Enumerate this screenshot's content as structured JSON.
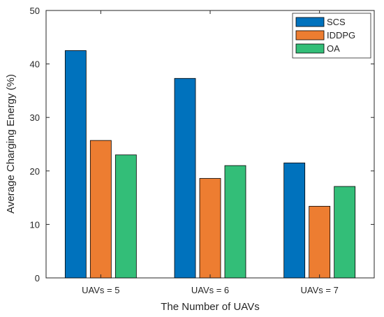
{
  "chart_data": {
    "type": "bar",
    "categories": [
      "UAVs = 5",
      "UAVs = 6",
      "UAVs = 7"
    ],
    "series": [
      {
        "name": "SCS",
        "values": [
          42.5,
          37.3,
          21.5
        ],
        "color": "#0072BD"
      },
      {
        "name": "IDDPG",
        "values": [
          25.7,
          18.6,
          13.4
        ],
        "color": "#ED7D31"
      },
      {
        "name": "OA",
        "values": [
          23.0,
          21.0,
          17.1
        ],
        "color": "#33BE78"
      }
    ],
    "xlabel": "The Number of UAVs",
    "ylabel": "Average Charging Energy (%)",
    "ylim": [
      0,
      50
    ],
    "yticks": [
      0,
      10,
      20,
      30,
      40,
      50
    ],
    "grid": false,
    "legend_position": "top-right"
  }
}
